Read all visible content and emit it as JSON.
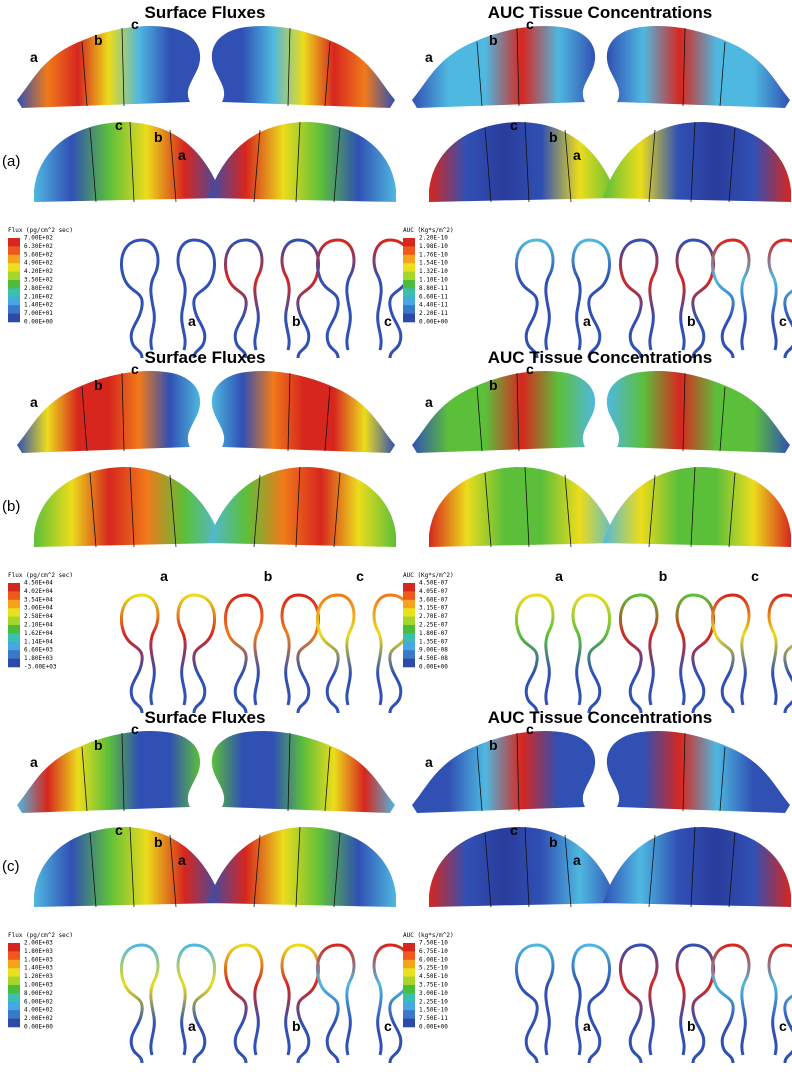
{
  "figure": {
    "panels": [
      {
        "label": "(a)",
        "flux": {
          "title": "Surface Fluxes",
          "upper_labels": [
            "a",
            "b",
            "c"
          ],
          "lower_labels": [
            "c",
            "b",
            "a"
          ],
          "section_labels": [
            "a",
            "b",
            "c"
          ],
          "colorbar": {
            "title": "Flux (pg/cm^2 sec)",
            "ticks": [
              "7.00E+02",
              "6.30E+02",
              "5.60E+02",
              "4.90E+02",
              "4.20E+02",
              "3.50E+02",
              "2.80E+02",
              "2.10E+02",
              "1.40E+02",
              "7.00E+01",
              "0.00E+00"
            ]
          }
        },
        "auc": {
          "title": "AUC Tissue Concentrations",
          "upper_labels": [
            "a",
            "b",
            "c"
          ],
          "lower_labels": [
            "c",
            "b",
            "a"
          ],
          "section_labels": [
            "a",
            "b",
            "c"
          ],
          "colorbar": {
            "title": "AUC (Kg*s/m^2)",
            "ticks": [
              "2.20E-10",
              "1.98E-10",
              "1.76E-10",
              "1.54E-10",
              "1.32E-10",
              "1.10E-10",
              "8.80E-11",
              "6.60E-11",
              "4.40E-11",
              "2.20E-11",
              "0.00E+00"
            ]
          }
        }
      },
      {
        "label": "(b)",
        "flux": {
          "title": "Surface Fluxes",
          "upper_labels": [
            "a",
            "b",
            "c"
          ],
          "lower_labels": [],
          "section_labels": [
            "a",
            "b",
            "c"
          ],
          "colorbar": {
            "title": "Flux (pg/cm^2 sec)",
            "ticks": [
              "4.50E+04",
              "4.02E+04",
              "3.54E+04",
              "3.06E+04",
              "2.58E+04",
              "2.10E+04",
              "1.62E+04",
              "1.14E+04",
              "6.60E+03",
              "1.80E+03",
              "-3.00E+03"
            ]
          }
        },
        "auc": {
          "title": "AUC Tissue Concentrations",
          "upper_labels": [
            "a",
            "b",
            "c"
          ],
          "lower_labels": [],
          "section_labels": [
            "a",
            "b",
            "c"
          ],
          "colorbar": {
            "title": "AUC (Kg*s/m^2)",
            "ticks": [
              "4.50E-07",
              "4.05E-07",
              "3.60E-07",
              "3.15E-07",
              "2.70E-07",
              "2.25E-07",
              "1.80E-07",
              "1.35E-07",
              "9.00E-08",
              "4.50E-08",
              "0.00E+00"
            ]
          }
        }
      },
      {
        "label": "(c)",
        "flux": {
          "title": "Surface Fluxes",
          "upper_labels": [
            "a",
            "b",
            "c"
          ],
          "lower_labels": [
            "c",
            "b",
            "a"
          ],
          "section_labels": [
            "a",
            "b",
            "c"
          ],
          "colorbar": {
            "title": "Flux (pg/cm^2 sec)",
            "ticks": [
              "2.00E+03",
              "1.80E+03",
              "1.60E+03",
              "1.40E+03",
              "1.20E+03",
              "1.00E+03",
              "8.00E+02",
              "6.00E+02",
              "4.00E+02",
              "2.00E+02",
              "0.00E+00"
            ]
          }
        },
        "auc": {
          "title": "AUC Tissue Concentrations",
          "upper_labels": [
            "a",
            "b",
            "c"
          ],
          "lower_labels": [
            "c",
            "b",
            "a"
          ],
          "section_labels": [
            "a",
            "b",
            "c"
          ],
          "colorbar": {
            "title": "AUC (kg*s/m^2)",
            "ticks": [
              "7.50E-10",
              "6.75E-10",
              "6.00E-10",
              "5.25E-10",
              "4.50E-10",
              "3.75E-10",
              "3.00E-10",
              "2.25E-10",
              "1.50E-10",
              "7.50E-11",
              "0.00E+00"
            ]
          }
        }
      }
    ]
  }
}
